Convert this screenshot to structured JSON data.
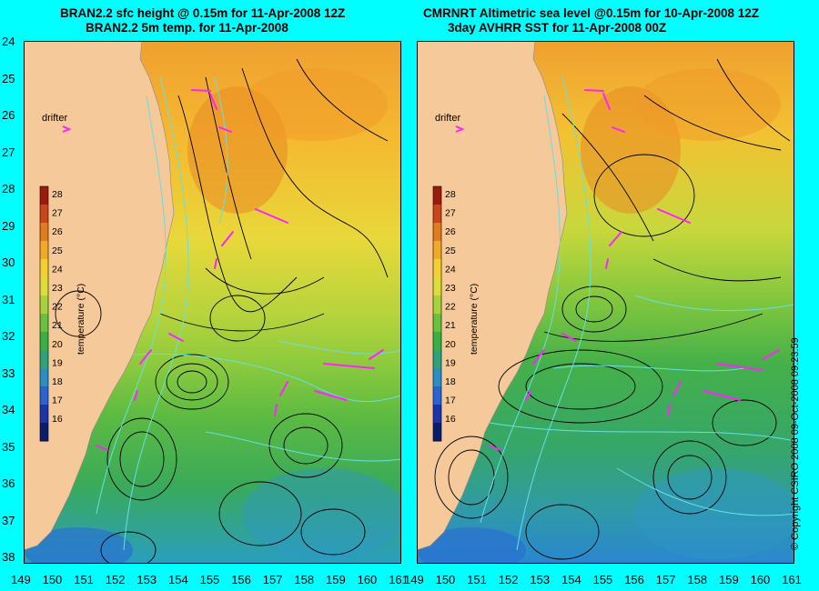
{
  "panels": [
    {
      "id": "left",
      "title_line1": "BRAN2.2 sfc height @ 0.15m for 11-Apr-2008 12Z",
      "title_line2": "BRAN2.2 5m temp. for 11-Apr-2008"
    },
    {
      "id": "right",
      "title_line1": "CMRNRT Altimetric sea level  @0.15m  for 10-Apr-2008 12Z",
      "title_line2": "3day AVHRR SST for 11-Apr-2008 00Z"
    }
  ],
  "lat_ticks": [
    "24",
    "25",
    "26",
    "27",
    "28",
    "29",
    "30",
    "31",
    "32",
    "33",
    "34",
    "35",
    "36",
    "37",
    "38"
  ],
  "lon_ticks": [
    "149",
    "150",
    "151",
    "152",
    "153",
    "154",
    "155",
    "156",
    "157",
    "158",
    "159",
    "160",
    "161"
  ],
  "colorbar": {
    "label": "temperature (°C)",
    "ticks": [
      "28",
      "27",
      "26",
      "25",
      "24",
      "23",
      "22",
      "21",
      "20",
      "19",
      "18",
      "17",
      "16"
    ],
    "colors": [
      "#9c1c0c",
      "#c8461a",
      "#e27a1e",
      "#f0aa28",
      "#f3cf32",
      "#dcdc3a",
      "#a8d23c",
      "#68c23e",
      "#38b044",
      "#2fa27a",
      "#2a8ec4",
      "#2a64d2",
      "#1c34a8",
      "#0c1c6a"
    ]
  },
  "legend": {
    "drifter_label": "drifter"
  },
  "copyright": "© Copyright CSIRO 2008   09-Oct-2008 09:23:59",
  "colors": {
    "coast_land": "#f5c99a",
    "contour_sst": "#66e0e0",
    "contour_height": "#000000",
    "drifter": "#ff22ff",
    "background": "#00ffff"
  }
}
